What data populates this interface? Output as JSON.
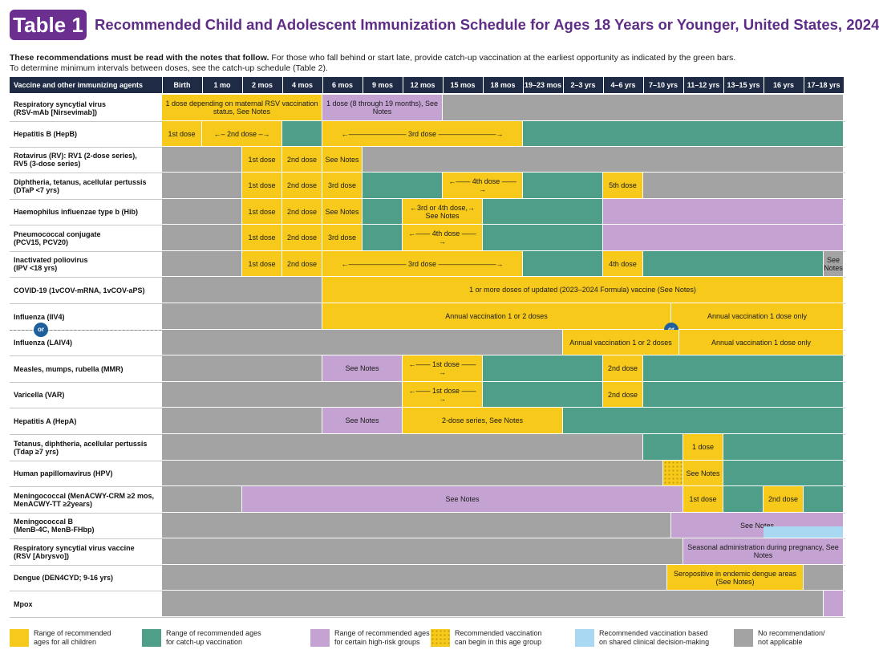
{
  "header": {
    "badge": "Table 1",
    "title": "Recommended Child and Adolescent Immunization Schedule for Ages 18 Years or Younger, United States, 2024"
  },
  "intro": {
    "bold": "These recommendations must be read with the notes that follow.",
    "line1_rest": " For those who fall behind or start late, provide catch-up vaccination at the earliest opportunity as indicated by the green bars.",
    "line2": "To determine minimum intervals between doses, see the catch-up schedule (Table 2)."
  },
  "colors": {
    "recommended": "#f6c91a",
    "catchup": "#4e9e8a",
    "high_risk": "#c4a3d2",
    "no_recommendation": "#a3a3a3",
    "shared_decision": "#a9d9f2",
    "header_bg": "#1f2a44",
    "title": "#5f2d86"
  },
  "columns": [
    "Vaccine and other immunizing agents",
    "Birth",
    "1 mo",
    "2 mos",
    "4 mos",
    "6 mos",
    "9 mos",
    "12 mos",
    "15 mos",
    "18 mos",
    "19–23 mos",
    "2–3 yrs",
    "4–6 yrs",
    "7–10 yrs",
    "11–12 yrs",
    "13–15 yrs",
    "16 yrs",
    "17–18 yrs"
  ],
  "or_label": "or",
  "rows": [
    {
      "label": [
        "Respiratory syncytial virus",
        "(RSV-mAb [Nirsevimab])"
      ],
      "segs": [
        {
          "c": "y",
          "s": 0,
          "e": 4,
          "t": "1 dose depending on maternal RSV vaccination status, See Notes"
        },
        {
          "c": "p",
          "s": 4,
          "e": 7,
          "t": "1 dose (8 through 19 months), See Notes"
        },
        {
          "c": "n",
          "s": 7,
          "e": 17,
          "t": ""
        }
      ]
    },
    {
      "label": [
        "Hepatitis B (HepB)"
      ],
      "segs": [
        {
          "c": "y",
          "s": 0,
          "e": 1,
          "t": "1st dose"
        },
        {
          "c": "y",
          "s": 1,
          "e": 3,
          "t": "←– 2nd dose –→"
        },
        {
          "c": "g",
          "s": 3,
          "e": 4,
          "t": ""
        },
        {
          "c": "y",
          "s": 4,
          "e": 9,
          "t": "←———————— 3rd dose ————————→"
        },
        {
          "c": "g",
          "s": 9,
          "e": 17,
          "t": ""
        }
      ]
    },
    {
      "label": [
        "Rotavirus (RV): RV1 (2-dose series),",
        "RV5 (3-dose series)"
      ],
      "segs": [
        {
          "c": "n",
          "s": 0,
          "e": 2,
          "t": ""
        },
        {
          "c": "y",
          "s": 2,
          "e": 3,
          "t": "1st dose"
        },
        {
          "c": "y",
          "s": 3,
          "e": 4,
          "t": "2nd dose"
        },
        {
          "c": "y",
          "s": 4,
          "e": 5,
          "t": "See Notes"
        },
        {
          "c": "n",
          "s": 5,
          "e": 17,
          "t": ""
        }
      ]
    },
    {
      "label": [
        "Diphtheria, tetanus, acellular pertussis",
        "(DTaP <7 yrs)"
      ],
      "segs": [
        {
          "c": "n",
          "s": 0,
          "e": 2,
          "t": ""
        },
        {
          "c": "y",
          "s": 2,
          "e": 3,
          "t": "1st dose"
        },
        {
          "c": "y",
          "s": 3,
          "e": 4,
          "t": "2nd dose"
        },
        {
          "c": "y",
          "s": 4,
          "e": 5,
          "t": "3rd dose"
        },
        {
          "c": "g",
          "s": 5,
          "e": 7,
          "t": ""
        },
        {
          "c": "y",
          "s": 7,
          "e": 9,
          "t": "←—— 4th dose ——→"
        },
        {
          "c": "g",
          "s": 9,
          "e": 11,
          "t": ""
        },
        {
          "c": "y",
          "s": 11,
          "e": 12,
          "t": "5th dose"
        },
        {
          "c": "n",
          "s": 12,
          "e": 17,
          "t": ""
        }
      ]
    },
    {
      "label": [
        "Haemophilus influenzae type b (Hib)"
      ],
      "segs": [
        {
          "c": "n",
          "s": 0,
          "e": 2,
          "t": ""
        },
        {
          "c": "y",
          "s": 2,
          "e": 3,
          "t": "1st dose"
        },
        {
          "c": "y",
          "s": 3,
          "e": 4,
          "t": "2nd dose"
        },
        {
          "c": "y",
          "s": 4,
          "e": 5,
          "t": "See Notes"
        },
        {
          "c": "g",
          "s": 5,
          "e": 6,
          "t": ""
        },
        {
          "c": "y",
          "s": 6,
          "e": 8,
          "t": "←3rd or 4th dose,→ See Notes"
        },
        {
          "c": "g",
          "s": 8,
          "e": 11,
          "t": ""
        },
        {
          "c": "p",
          "s": 11,
          "e": 17,
          "t": ""
        }
      ]
    },
    {
      "label": [
        "Pneumococcal conjugate",
        "(PCV15, PCV20)"
      ],
      "segs": [
        {
          "c": "n",
          "s": 0,
          "e": 2,
          "t": ""
        },
        {
          "c": "y",
          "s": 2,
          "e": 3,
          "t": "1st dose"
        },
        {
          "c": "y",
          "s": 3,
          "e": 4,
          "t": "2nd dose"
        },
        {
          "c": "y",
          "s": 4,
          "e": 5,
          "t": "3rd dose"
        },
        {
          "c": "g",
          "s": 5,
          "e": 6,
          "t": ""
        },
        {
          "c": "y",
          "s": 6,
          "e": 8,
          "t": "←—— 4th dose ——→"
        },
        {
          "c": "g",
          "s": 8,
          "e": 11,
          "t": ""
        },
        {
          "c": "p",
          "s": 11,
          "e": 17,
          "t": ""
        }
      ]
    },
    {
      "label": [
        "Inactivated poliovirus",
        "(IPV <18 yrs)"
      ],
      "segs": [
        {
          "c": "n",
          "s": 0,
          "e": 2,
          "t": ""
        },
        {
          "c": "y",
          "s": 2,
          "e": 3,
          "t": "1st dose"
        },
        {
          "c": "y",
          "s": 3,
          "e": 4,
          "t": "2nd dose"
        },
        {
          "c": "y",
          "s": 4,
          "e": 9,
          "t": "←———————— 3rd dose ————————→"
        },
        {
          "c": "g",
          "s": 9,
          "e": 11,
          "t": ""
        },
        {
          "c": "y",
          "s": 11,
          "e": 12,
          "t": "4th dose"
        },
        {
          "c": "g",
          "s": 12,
          "e": 16.5,
          "t": ""
        },
        {
          "c": "n",
          "s": 16.5,
          "e": 17,
          "t": "See Notes"
        }
      ]
    },
    {
      "label": [
        "COVID-19 (1vCOV-mRNA, 1vCOV-aPS)"
      ],
      "segs": [
        {
          "c": "n",
          "s": 0,
          "e": 4,
          "t": ""
        },
        {
          "c": "y",
          "s": 4,
          "e": 17,
          "t": "1 or more doses of updated (2023–2024 Formula) vaccine (See Notes)"
        }
      ]
    },
    {
      "label": [
        "Influenza (IIV4)"
      ],
      "segs": [
        {
          "c": "n",
          "s": 0,
          "e": 4,
          "t": ""
        },
        {
          "c": "y",
          "s": 4,
          "e": 12.7,
          "t": "Annual vaccination 1 or 2 doses"
        },
        {
          "c": "y",
          "s": 12.7,
          "e": 17,
          "t": "Annual vaccination 1 dose only"
        }
      ]
    },
    {
      "label": [
        "Influenza (LAIV4)"
      ],
      "segs": [
        {
          "c": "n",
          "s": 0,
          "e": 10,
          "t": ""
        },
        {
          "c": "y",
          "s": 10,
          "e": 12.9,
          "t": "Annual vaccination 1 or 2 doses"
        },
        {
          "c": "y",
          "s": 12.9,
          "e": 17,
          "t": "Annual vaccination 1 dose only"
        }
      ]
    },
    {
      "label": [
        "Measles, mumps, rubella (MMR)"
      ],
      "segs": [
        {
          "c": "n",
          "s": 0,
          "e": 4,
          "t": ""
        },
        {
          "c": "p",
          "s": 4,
          "e": 6,
          "t": "See Notes"
        },
        {
          "c": "y",
          "s": 6,
          "e": 8,
          "t": "←—— 1st dose ——→"
        },
        {
          "c": "g",
          "s": 8,
          "e": 11,
          "t": ""
        },
        {
          "c": "y",
          "s": 11,
          "e": 12,
          "t": "2nd dose"
        },
        {
          "c": "g",
          "s": 12,
          "e": 17,
          "t": ""
        }
      ]
    },
    {
      "label": [
        "Varicella (VAR)"
      ],
      "segs": [
        {
          "c": "n",
          "s": 0,
          "e": 6,
          "t": ""
        },
        {
          "c": "y",
          "s": 6,
          "e": 8,
          "t": "←—— 1st dose ——→"
        },
        {
          "c": "g",
          "s": 8,
          "e": 11,
          "t": ""
        },
        {
          "c": "y",
          "s": 11,
          "e": 12,
          "t": "2nd dose"
        },
        {
          "c": "g",
          "s": 12,
          "e": 17,
          "t": ""
        }
      ]
    },
    {
      "label": [
        "Hepatitis A (HepA)"
      ],
      "segs": [
        {
          "c": "n",
          "s": 0,
          "e": 4,
          "t": ""
        },
        {
          "c": "p",
          "s": 4,
          "e": 6,
          "t": "See Notes"
        },
        {
          "c": "y",
          "s": 6,
          "e": 10,
          "t": "2-dose series, See Notes"
        },
        {
          "c": "g",
          "s": 10,
          "e": 17,
          "t": ""
        }
      ]
    },
    {
      "label": [
        "Tetanus, diphtheria, acellular pertussis",
        "(Tdap ≥7 yrs)"
      ],
      "segs": [
        {
          "c": "n",
          "s": 0,
          "e": 12,
          "t": ""
        },
        {
          "c": "g",
          "s": 12,
          "e": 13,
          "t": ""
        },
        {
          "c": "y",
          "s": 13,
          "e": 14,
          "t": "1 dose"
        },
        {
          "c": "g",
          "s": 14,
          "e": 17,
          "t": ""
        }
      ]
    },
    {
      "label": [
        "Human papillomavirus (HPV)"
      ],
      "segs": [
        {
          "c": "n",
          "s": 0,
          "e": 12.5,
          "t": ""
        },
        {
          "c": "d",
          "s": 12.5,
          "e": 13,
          "t": ""
        },
        {
          "c": "y",
          "s": 13,
          "e": 14,
          "t": "See Notes"
        },
        {
          "c": "g",
          "s": 14,
          "e": 17,
          "t": ""
        }
      ]
    },
    {
      "label": [
        "Meningococcal (MenACWY-CRM ≥2 mos,",
        "MenACWY-TT ≥2years)"
      ],
      "segs": [
        {
          "c": "n",
          "s": 0,
          "e": 2,
          "t": ""
        },
        {
          "c": "p",
          "s": 2,
          "e": 13,
          "t": "See Notes"
        },
        {
          "c": "y",
          "s": 13,
          "e": 14,
          "t": "1st dose"
        },
        {
          "c": "g",
          "s": 14,
          "e": 15,
          "t": ""
        },
        {
          "c": "y",
          "s": 15,
          "e": 16,
          "t": "2nd dose"
        },
        {
          "c": "g",
          "s": 16,
          "e": 17,
          "t": ""
        }
      ]
    },
    {
      "label": [
        "Meningococcal B",
        "(MenB-4C, MenB-FHbp)"
      ],
      "segs": [
        {
          "c": "n",
          "s": 0,
          "e": 12.7,
          "t": ""
        },
        {
          "c": "p",
          "s": 12.7,
          "e": 17,
          "t": "See Notes"
        }
      ]
    },
    {
      "label": [
        "Respiratory syncytial virus vaccine",
        "(RSV [Abrysvo])"
      ],
      "segs": [
        {
          "c": "n",
          "s": 0,
          "e": 13,
          "t": ""
        },
        {
          "c": "p",
          "s": 13,
          "e": 17,
          "t": "Seasonal administration during pregnancy, See Notes"
        }
      ]
    },
    {
      "label": [
        "Dengue (DEN4CYD; 9-16 yrs)"
      ],
      "segs": [
        {
          "c": "n",
          "s": 0,
          "e": 12.6,
          "t": ""
        },
        {
          "c": "y",
          "s": 12.6,
          "e": 16,
          "t": "Seropositive in endemic dengue areas (See Notes)"
        },
        {
          "c": "n",
          "s": 16,
          "e": 17,
          "t": ""
        }
      ]
    },
    {
      "label": [
        "Mpox"
      ],
      "segs": [
        {
          "c": "n",
          "s": 0,
          "e": 16.5,
          "t": ""
        },
        {
          "c": "p",
          "s": 16.5,
          "e": 17,
          "t": ""
        }
      ]
    }
  ],
  "legend": [
    {
      "c": "y",
      "t": [
        "Range of recommended",
        "ages for all children"
      ]
    },
    {
      "c": "g",
      "t": [
        "Range of recommended ages",
        "for catch-up vaccination"
      ]
    },
    {
      "c": "p",
      "t": [
        "Range of recommended ages",
        "for certain high-risk groups"
      ]
    },
    {
      "c": "d",
      "t": [
        "Recommended vaccination",
        "can begin in this age group"
      ]
    },
    {
      "c": "b",
      "t": [
        "Recommended vaccination based",
        "on shared clinical decision-making"
      ]
    },
    {
      "c": "n",
      "t": [
        "No recommendation/",
        "not applicable"
      ]
    }
  ]
}
